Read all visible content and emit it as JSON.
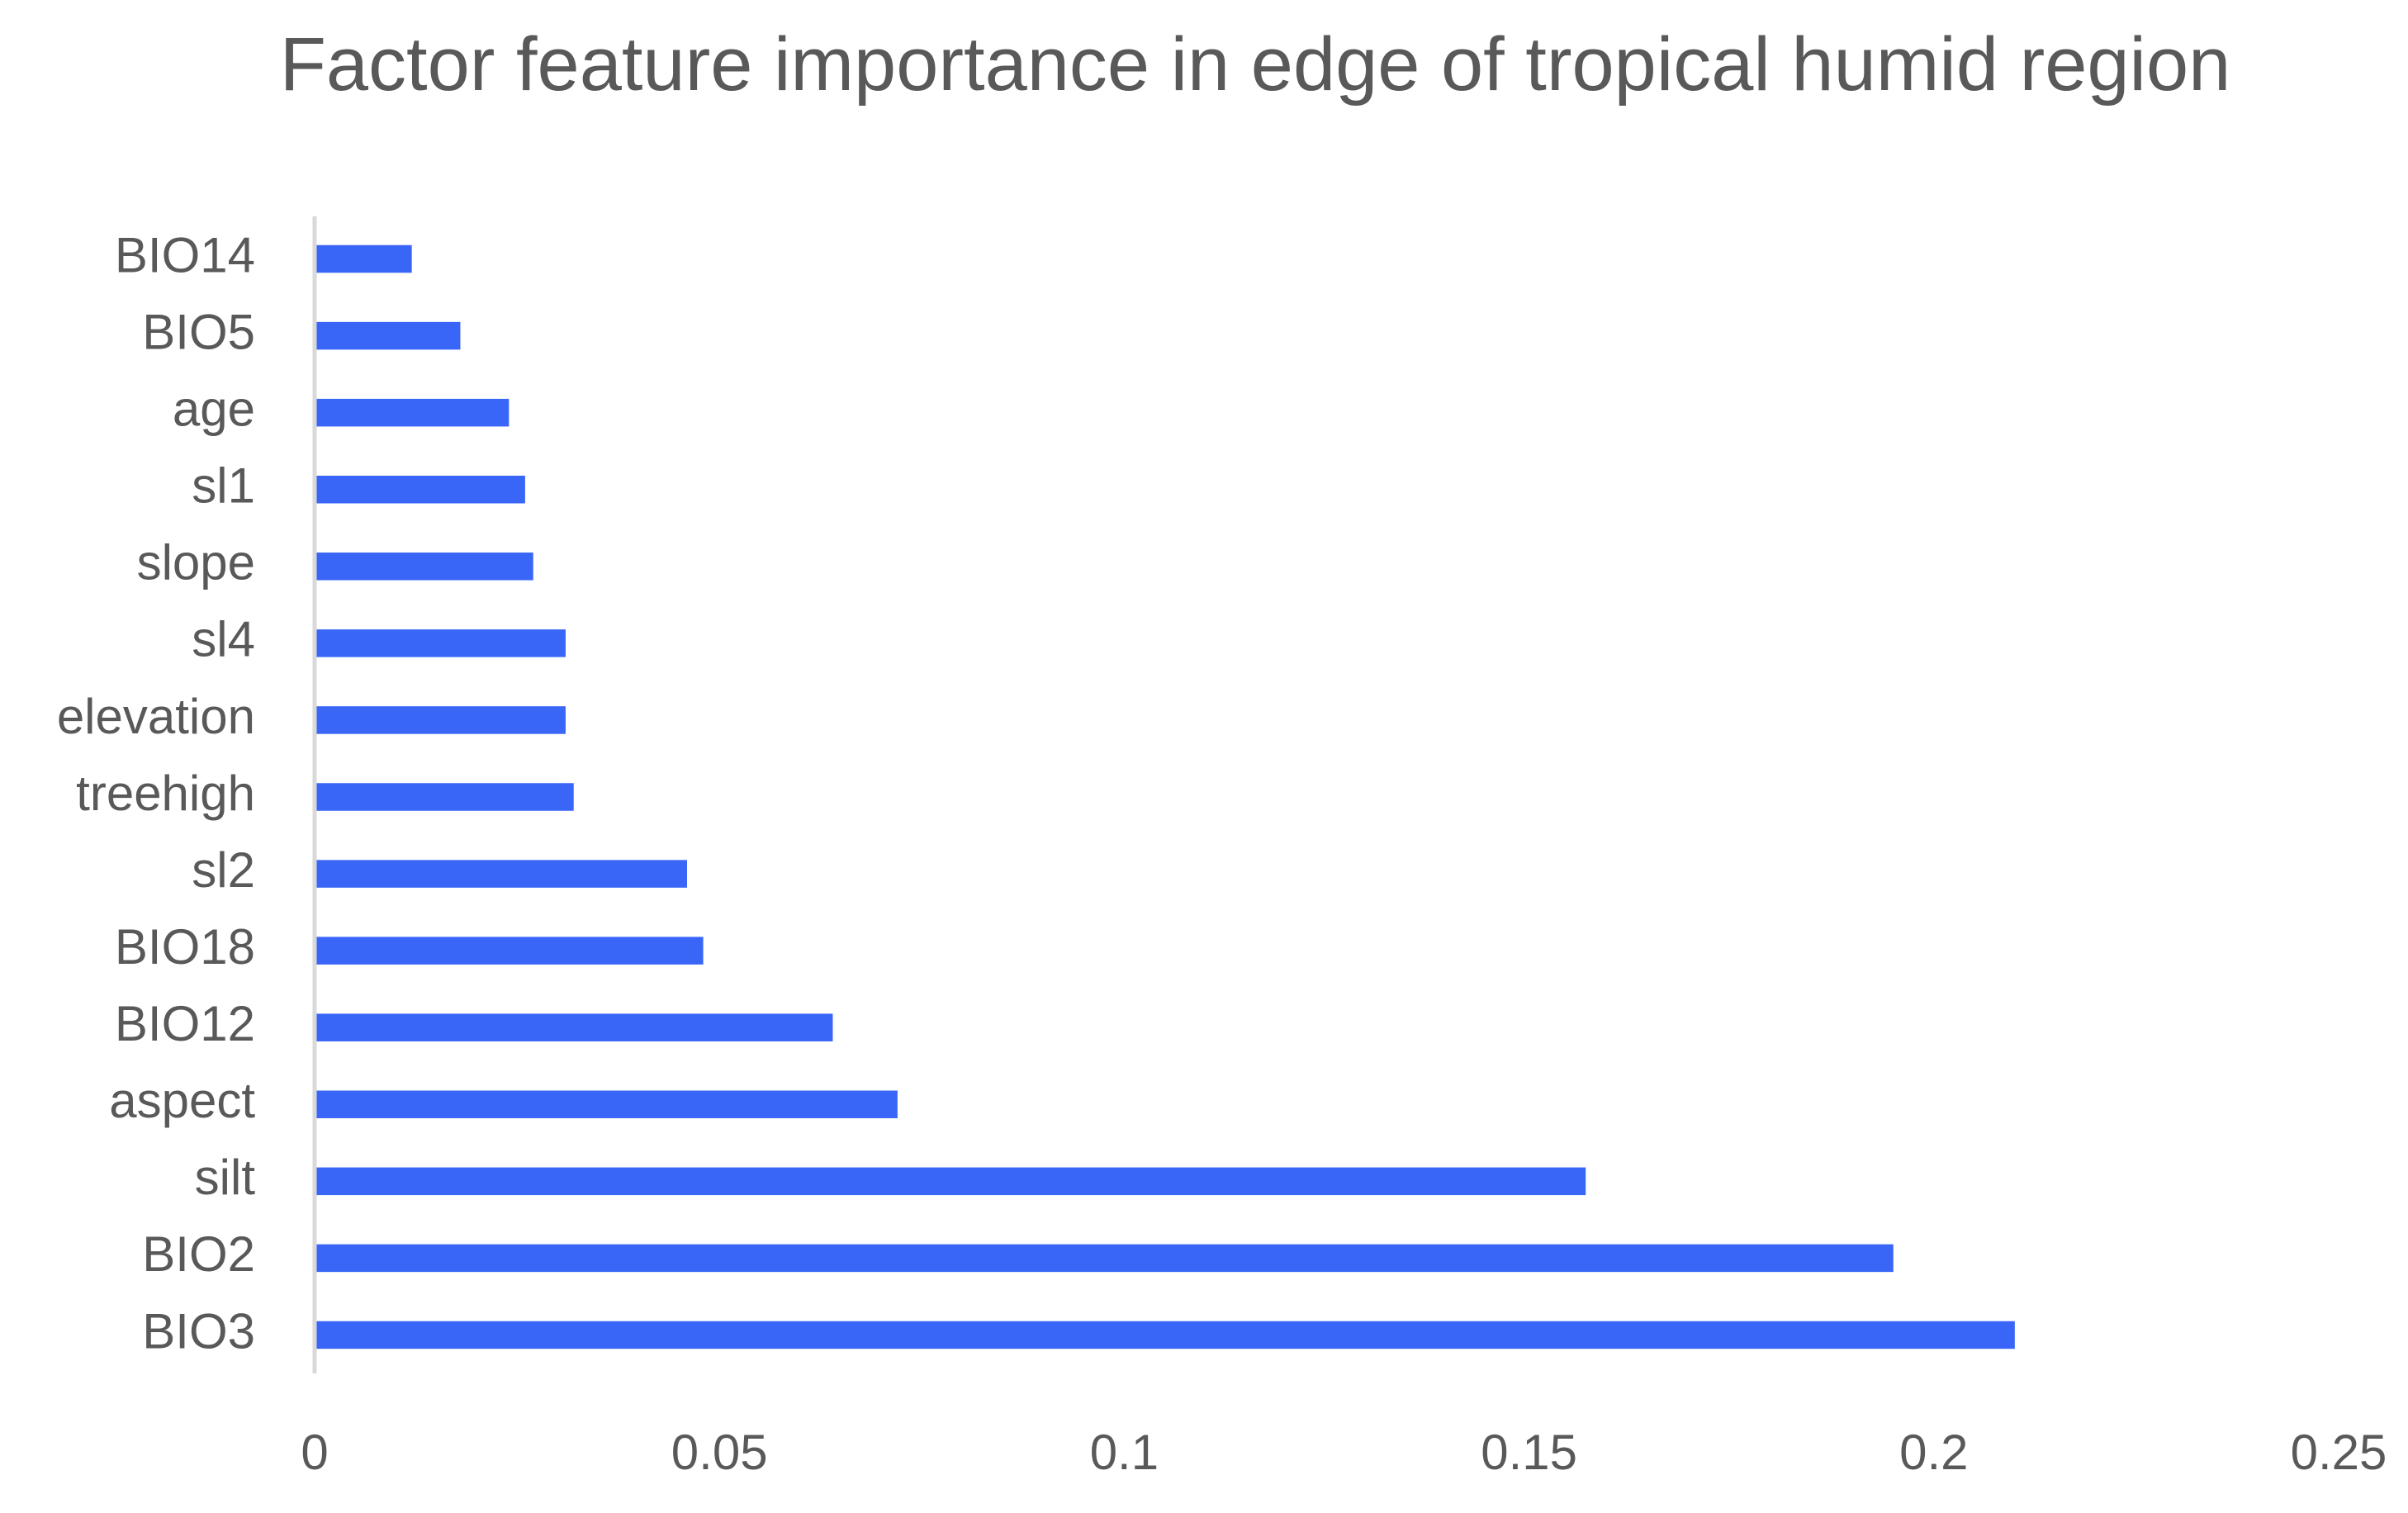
{
  "chart_data": {
    "type": "bar",
    "orientation": "horizontal",
    "title": "Factor feature importance in edge of tropical humid region",
    "categories": [
      "BIO3",
      "BIO2",
      "silt",
      "aspect",
      "BIO12",
      "BIO18",
      "sl2",
      "treehigh",
      "elevation",
      "sl4",
      "slope",
      "sl1",
      "age",
      "BIO5",
      "BIO14"
    ],
    "values": [
      0.21,
      0.195,
      0.157,
      0.072,
      0.064,
      0.048,
      0.046,
      0.032,
      0.031,
      0.031,
      0.027,
      0.026,
      0.024,
      0.018,
      0.012
    ],
    "color": "#3a66f8",
    "xlim": [
      0,
      0.25
    ],
    "xticks": [
      0,
      0.05,
      0.1,
      0.15,
      0.2,
      0.25
    ],
    "grid": false
  }
}
